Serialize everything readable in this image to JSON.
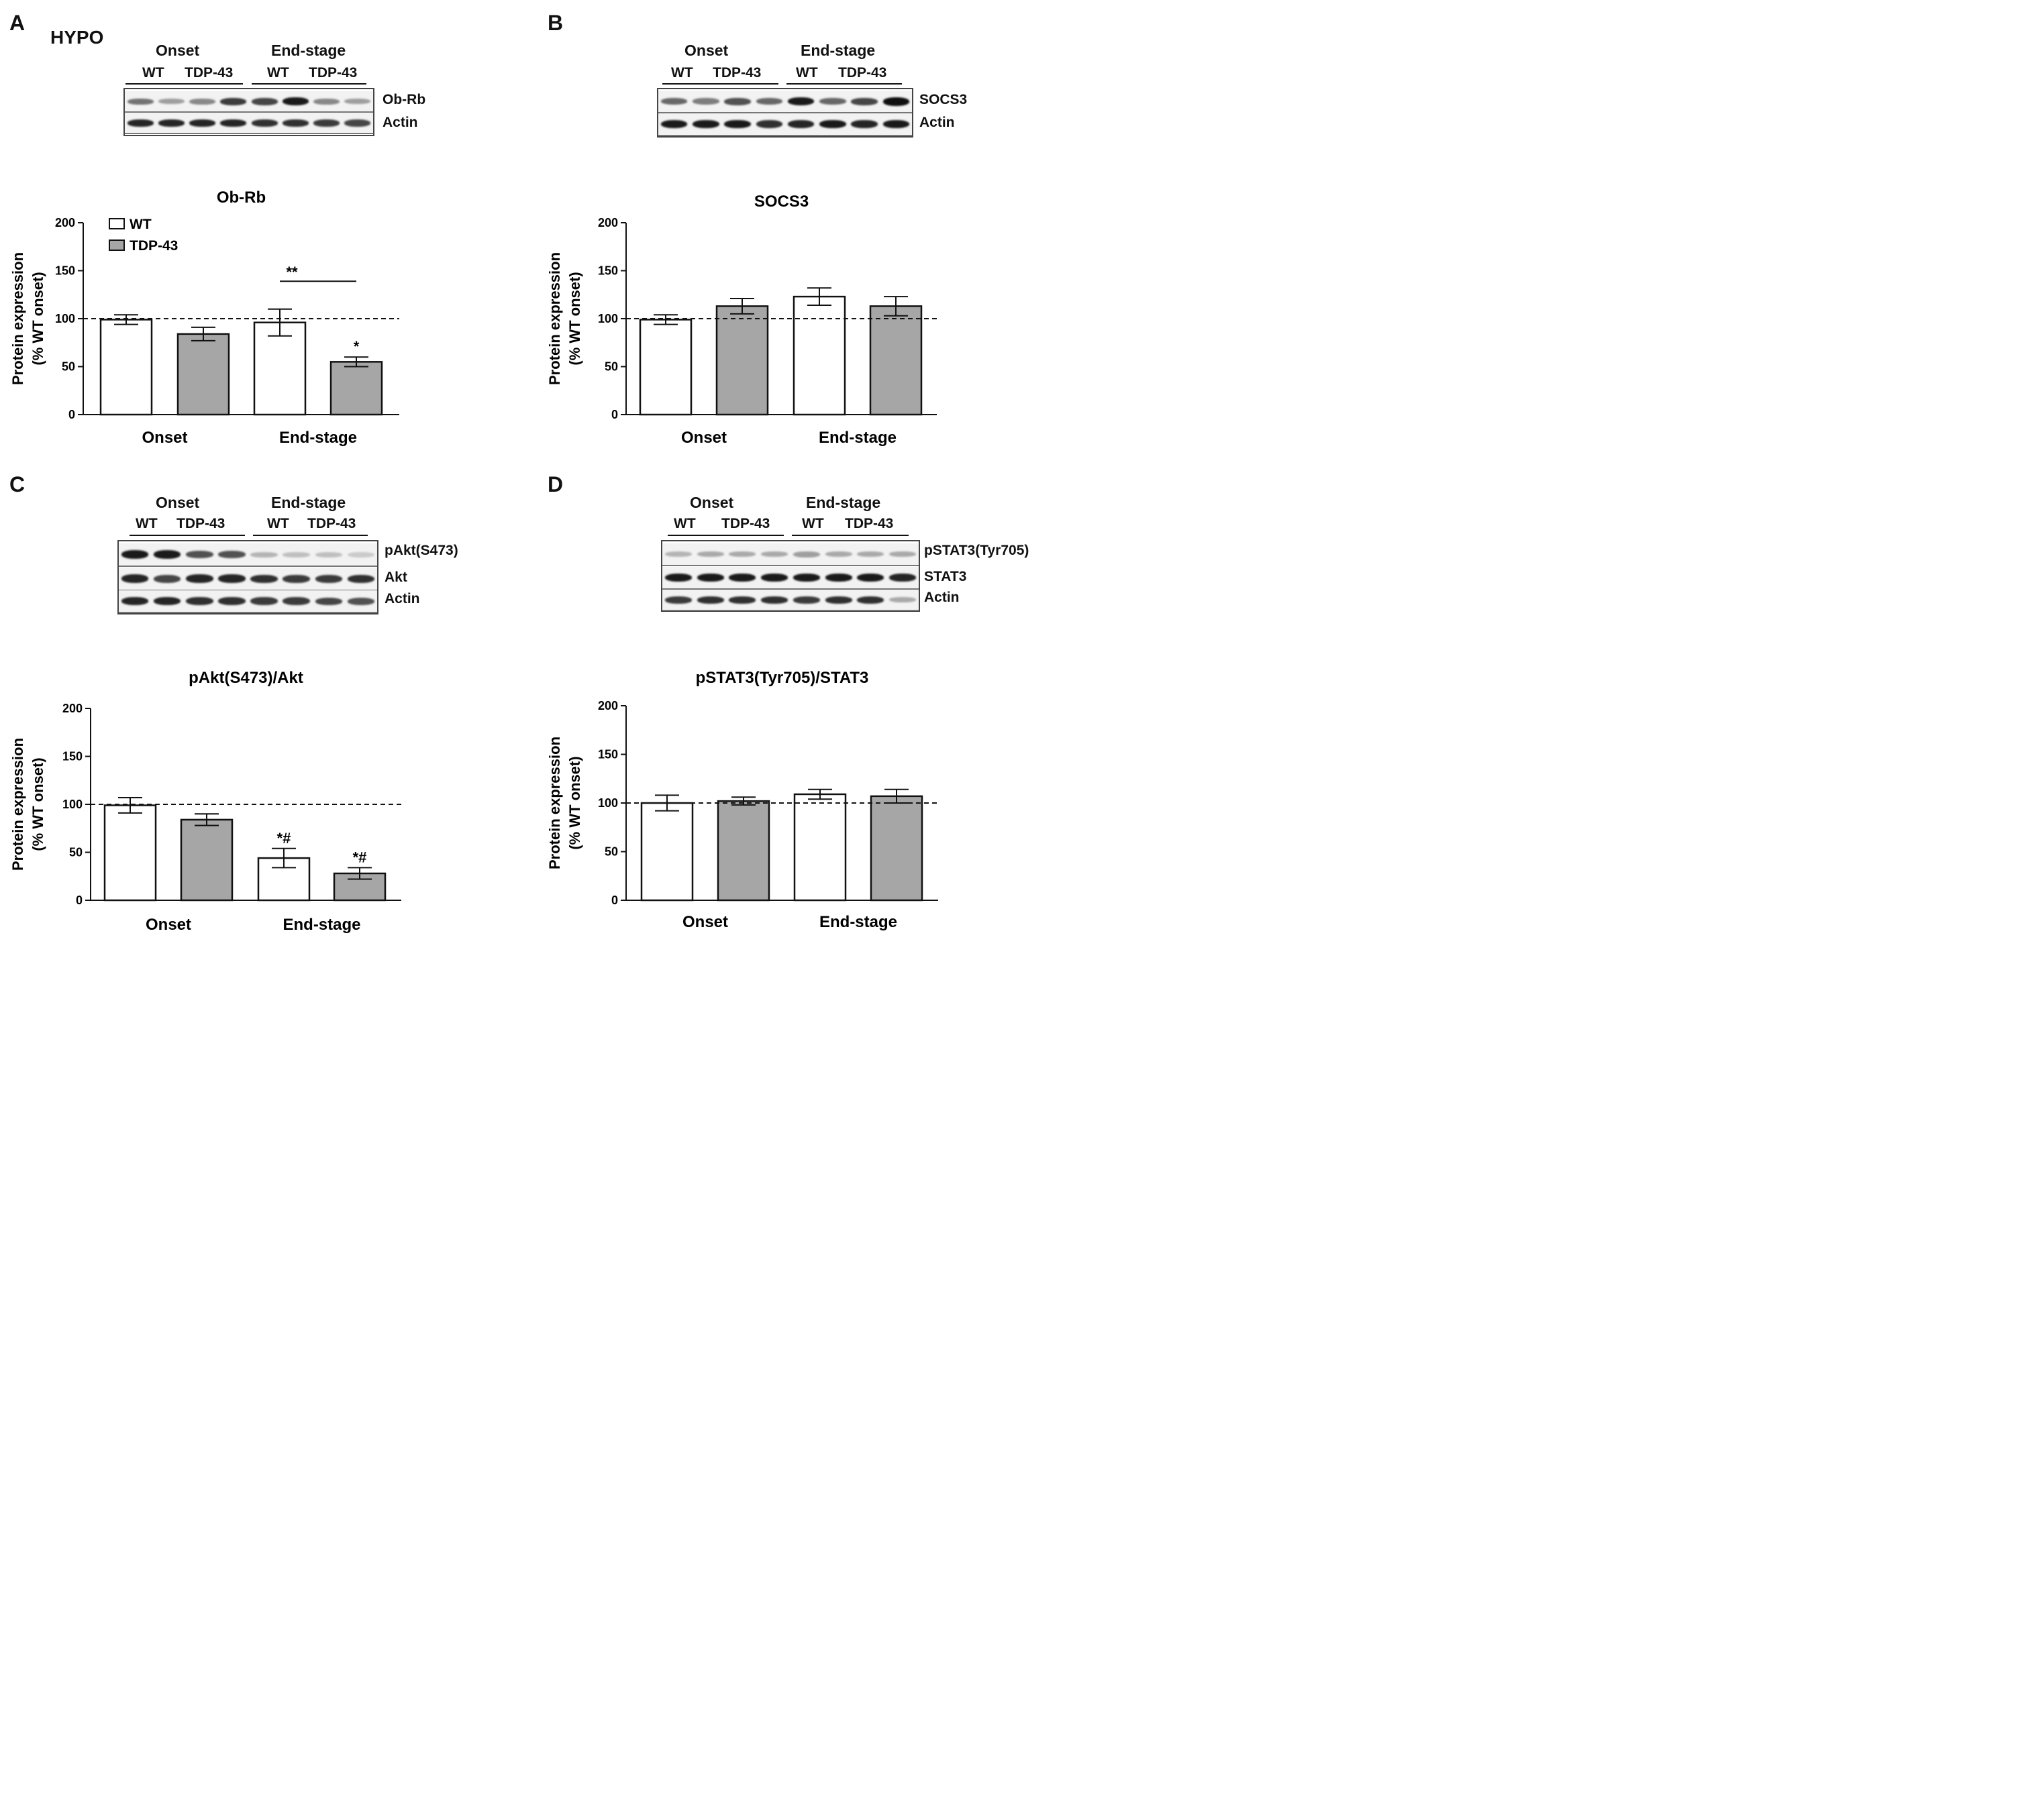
{
  "page": {
    "title": "HYPO"
  },
  "panels": [
    {
      "letter": "A",
      "blot": {
        "groups": [
          "Onset",
          "End-stage"
        ],
        "subgroups": [
          "WT",
          "TDP-43",
          "WT",
          "TDP-43"
        ],
        "rows": [
          "Ob-Rb",
          "Actin"
        ]
      }
    },
    {
      "letter": "B",
      "blot": {
        "groups": [
          "Onset",
          "End-stage"
        ],
        "subgroups": [
          "WT",
          "TDP-43",
          "WT",
          "TDP-43"
        ],
        "rows": [
          "SOCS3",
          "Actin"
        ]
      }
    },
    {
      "letter": "C",
      "blot": {
        "groups": [
          "Onset",
          "End-stage"
        ],
        "subgroups": [
          "WT",
          "TDP-43",
          "WT",
          "TDP-43"
        ],
        "rows": [
          "pAkt(S473)",
          "Akt",
          "Actin"
        ]
      }
    },
    {
      "letter": "D",
      "blot": {
        "groups": [
          "Onset",
          "End-stage"
        ],
        "subgroups": [
          "WT",
          "TDP-43",
          "WT",
          "TDP-43"
        ],
        "rows": [
          "pSTAT3(Tyr705)",
          "STAT3",
          "Actin"
        ]
      }
    }
  ],
  "colors": {
    "wt": "#ffffff",
    "tdp43": "#a6a6a6",
    "stroke": "#111111"
  },
  "legend": [
    "WT",
    "TDP-43"
  ],
  "chart_data": [
    {
      "type": "bar",
      "title": "Ob-Rb",
      "ylabel": "Protein expression",
      "ylabel2": "(% WT onset)",
      "ylim": [
        0,
        200
      ],
      "yticks": [
        "0",
        "50",
        "100",
        "150",
        "200"
      ],
      "reference_line": 100,
      "categories": [
        "Onset",
        "End-stage"
      ],
      "series": [
        {
          "name": "WT",
          "values": [
            99,
            96
          ],
          "errors": [
            5,
            14
          ],
          "annotations": [
            "",
            ""
          ]
        },
        {
          "name": "TDP-43",
          "values": [
            84,
            55
          ],
          "errors": [
            7,
            5
          ],
          "annotations": [
            "",
            "*"
          ]
        }
      ],
      "significance": [
        {
          "label": "**",
          "from": "End-stage WT",
          "to": "End-stage TDP-43"
        }
      ]
    },
    {
      "type": "bar",
      "title": "SOCS3",
      "ylabel": "Protein expression",
      "ylabel2": "(% WT onset)",
      "ylim": [
        0,
        200
      ],
      "yticks": [
        "0",
        "50",
        "100",
        "150",
        "200"
      ],
      "reference_line": 100,
      "categories": [
        "Onset",
        "End-stage"
      ],
      "series": [
        {
          "name": "WT",
          "values": [
            99,
            123
          ],
          "errors": [
            5,
            9
          ],
          "annotations": [
            "",
            ""
          ]
        },
        {
          "name": "TDP-43",
          "values": [
            113,
            113
          ],
          "errors": [
            8,
            10
          ],
          "annotations": [
            "",
            ""
          ]
        }
      ],
      "significance": []
    },
    {
      "type": "bar",
      "title": "pAkt(S473)/Akt",
      "ylabel": "Protein expression",
      "ylabel2": "(% WT onset)",
      "ylim": [
        0,
        200
      ],
      "yticks": [
        "0",
        "50",
        "100",
        "150",
        "200"
      ],
      "reference_line": 100,
      "categories": [
        "Onset",
        "End-stage"
      ],
      "series": [
        {
          "name": "WT",
          "values": [
            99,
            44
          ],
          "errors": [
            8,
            10
          ],
          "annotations": [
            "",
            "*#"
          ]
        },
        {
          "name": "TDP-43",
          "values": [
            84,
            28
          ],
          "errors": [
            6,
            6
          ],
          "annotations": [
            "",
            "*#"
          ]
        }
      ],
      "significance": []
    },
    {
      "type": "bar",
      "title": "pSTAT3(Tyr705)/STAT3",
      "ylabel": "Protein expression",
      "ylabel2": "(% WT onset)",
      "ylim": [
        0,
        200
      ],
      "yticks": [
        "0",
        "50",
        "100",
        "150",
        "200"
      ],
      "reference_line": 100,
      "categories": [
        "Onset",
        "End-stage"
      ],
      "series": [
        {
          "name": "WT",
          "values": [
            100,
            109
          ],
          "errors": [
            8,
            5
          ],
          "annotations": [
            "",
            ""
          ]
        },
        {
          "name": "TDP-43",
          "values": [
            102,
            107
          ],
          "errors": [
            4,
            7
          ],
          "annotations": [
            "",
            ""
          ]
        }
      ],
      "significance": []
    }
  ]
}
